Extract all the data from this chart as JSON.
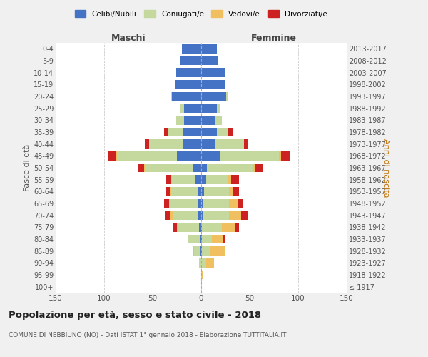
{
  "age_groups": [
    "100+",
    "95-99",
    "90-94",
    "85-89",
    "80-84",
    "75-79",
    "70-74",
    "65-69",
    "60-64",
    "55-59",
    "50-54",
    "45-49",
    "40-44",
    "35-39",
    "30-34",
    "25-29",
    "20-24",
    "15-19",
    "10-14",
    "5-9",
    "0-4"
  ],
  "birth_years": [
    "≤ 1917",
    "1918-1922",
    "1923-1927",
    "1928-1932",
    "1933-1937",
    "1938-1942",
    "1943-1947",
    "1948-1952",
    "1953-1957",
    "1958-1962",
    "1963-1967",
    "1968-1972",
    "1973-1977",
    "1978-1982",
    "1983-1987",
    "1988-1992",
    "1993-1997",
    "1998-2002",
    "2003-2007",
    "2008-2012",
    "2013-2017"
  ],
  "male": {
    "celibi": [
      0,
      0,
      0,
      1,
      1,
      2,
      3,
      4,
      4,
      6,
      8,
      25,
      19,
      19,
      18,
      18,
      30,
      27,
      26,
      22,
      20
    ],
    "coniugati": [
      0,
      0,
      2,
      6,
      12,
      22,
      26,
      28,
      27,
      24,
      50,
      62,
      35,
      15,
      8,
      3,
      1,
      0,
      0,
      0,
      0
    ],
    "vedovi": [
      0,
      0,
      0,
      1,
      1,
      1,
      3,
      1,
      1,
      1,
      1,
      1,
      0,
      0,
      0,
      0,
      0,
      0,
      0,
      0,
      0
    ],
    "divorziati": [
      0,
      0,
      0,
      0,
      0,
      4,
      5,
      5,
      4,
      5,
      6,
      8,
      4,
      4,
      0,
      0,
      0,
      0,
      0,
      0,
      0
    ]
  },
  "female": {
    "nubili": [
      0,
      0,
      0,
      1,
      1,
      1,
      2,
      2,
      3,
      5,
      6,
      20,
      14,
      16,
      14,
      16,
      26,
      25,
      24,
      18,
      16
    ],
    "coniugate": [
      0,
      1,
      5,
      8,
      10,
      20,
      27,
      27,
      26,
      23,
      48,
      60,
      30,
      12,
      7,
      3,
      1,
      0,
      0,
      0,
      0
    ],
    "vedove": [
      0,
      1,
      8,
      16,
      12,
      14,
      12,
      9,
      4,
      3,
      2,
      2,
      0,
      0,
      0,
      0,
      0,
      0,
      0,
      0,
      0
    ],
    "divorziate": [
      0,
      0,
      0,
      0,
      1,
      4,
      7,
      5,
      6,
      8,
      8,
      10,
      4,
      4,
      0,
      0,
      0,
      0,
      0,
      0,
      0
    ]
  },
  "colors": {
    "celibi": "#4472c4",
    "coniugati": "#c5d99e",
    "vedovi": "#f0c060",
    "divorziati": "#cc2222"
  },
  "xlim": 150,
  "title": "Popolazione per età, sesso e stato civile - 2018",
  "subtitle": "COMUNE DI NEBBIUNO (NO) - Dati ISTAT 1° gennaio 2018 - Elaborazione TUTTITALIA.IT",
  "maschi_label": "Maschi",
  "femmine_label": "Femmine",
  "fasce_label": "Fasce di età",
  "anni_label": "Anni di nascita",
  "legend_labels": [
    "Celibi/Nubili",
    "Coniugati/e",
    "Vedovi/e",
    "Divorziati/e"
  ],
  "bg_color": "#f0f0f0",
  "plot_bg": "#ffffff"
}
